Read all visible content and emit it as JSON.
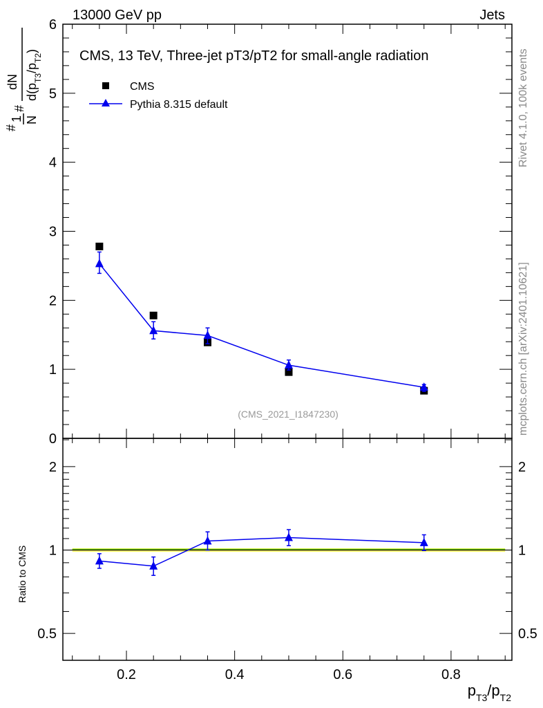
{
  "header": {
    "left": "13000 GeV pp",
    "right": "Jets"
  },
  "side_labels": {
    "rivet": "Rivet 4.1.0,  100k events",
    "mcplots": "mcplots.cern.ch [arXiv:2401.10621]"
  },
  "colors": {
    "data": "#000000",
    "mc": "#0000ee",
    "band": "#f5f56a",
    "band_line": "#66cc00",
    "watermark": "#999999"
  },
  "chart_data": [
    {
      "type": "scatter",
      "title": "CMS, 13 TeV, Three-jet pT3/pT2 for small-angle radiation",
      "analysis_id": "(CMS_2021_I1847230)",
      "ylabel": {
        "hash1": "#",
        "num1": "1",
        "den1": "N",
        "hash2": "#",
        "num2": "dN",
        "den2_pre": "d(p",
        "den2_sub1": "T3",
        "den2_mid": "/p",
        "den2_sub2": "T2",
        "den2_post": ")"
      },
      "xlim": [
        0.0825,
        0.9125
      ],
      "ylim": [
        0,
        6
      ],
      "yticks": [
        "0",
        "1",
        "2",
        "3",
        "4",
        "5",
        "6"
      ],
      "grid": false,
      "legend_placement": "top-left",
      "series": [
        {
          "name": "CMS",
          "marker": "square",
          "x": [
            0.15,
            0.25,
            0.35,
            0.5,
            0.75
          ],
          "y": [
            2.78,
            1.78,
            1.39,
            0.96,
            0.69
          ]
        },
        {
          "name": "Pythia 8.315 default",
          "marker": "triangle",
          "x": [
            0.15,
            0.25,
            0.35,
            0.5,
            0.75
          ],
          "y": [
            2.53,
            1.56,
            1.49,
            1.06,
            0.74
          ],
          "yerr_low": [
            2.39,
            1.44,
            1.37,
            0.99,
            0.68
          ],
          "yerr_high": [
            2.7,
            1.69,
            1.6,
            1.135,
            0.78
          ]
        }
      ]
    },
    {
      "type": "line",
      "ylabel": "Ratio to CMS",
      "xlabel": {
        "p1": "p",
        "s1": "T3",
        "mid": "/p",
        "s2": "T2"
      },
      "xlim": [
        0.0825,
        0.9125
      ],
      "ylim": [
        0.4,
        2.53
      ],
      "yscale": "log",
      "xticks": [
        "0.2",
        "0.4",
        "0.6",
        "0.8"
      ],
      "yticks": [
        "0.5",
        "1",
        "2"
      ],
      "band": {
        "x": [
          0.1,
          0.9
        ],
        "low": 0.985,
        "high": 1.015
      },
      "series": [
        {
          "name": "Pythia 8.315 default / CMS",
          "x": [
            0.15,
            0.25,
            0.35,
            0.5,
            0.75
          ],
          "y": [
            0.913,
            0.875,
            1.078,
            1.109,
            1.063
          ],
          "yerr_low": [
            0.859,
            0.81,
            1.0,
            1.037,
            0.996
          ],
          "yerr_high": [
            0.97,
            0.944,
            1.163,
            1.185,
            1.135
          ]
        }
      ]
    }
  ]
}
